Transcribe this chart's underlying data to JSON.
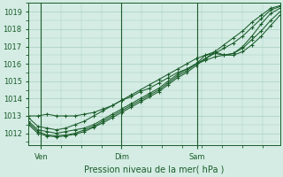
{
  "title": "Pression niveau de la mer( hPa )",
  "bg_color": "#d4ece4",
  "grid_color": "#a8cfc0",
  "line_color": "#1a5c2a",
  "ylim": [
    1011.3,
    1019.5
  ],
  "yticks": [
    1012,
    1013,
    1014,
    1015,
    1016,
    1017,
    1018,
    1019
  ],
  "xtick_labels": [
    "Ven",
    "Dim",
    "Sam"
  ],
  "xtick_positions": [
    0.05,
    0.37,
    0.67
  ],
  "vlines": [
    0.05,
    0.37,
    0.67
  ],
  "series": [
    [
      1012.7,
      1012.2,
      1012.1,
      1012.0,
      1012.1,
      1012.2,
      1012.3,
      1012.5,
      1012.8,
      1013.1,
      1013.4,
      1013.7,
      1014.0,
      1014.3,
      1014.6,
      1015.0,
      1015.4,
      1015.7,
      1016.0,
      1016.3,
      1016.6,
      1016.9,
      1017.2,
      1017.6,
      1018.1,
      1018.6,
      1019.1,
      1019.3
    ],
    [
      1012.6,
      1012.1,
      1011.9,
      1011.85,
      1011.9,
      1012.0,
      1012.2,
      1012.4,
      1012.7,
      1013.0,
      1013.3,
      1013.6,
      1013.9,
      1014.2,
      1014.5,
      1014.9,
      1015.3,
      1015.6,
      1016.0,
      1016.5,
      1016.7,
      1016.5,
      1016.6,
      1017.0,
      1017.6,
      1018.3,
      1018.9,
      1019.2
    ],
    [
      1012.9,
      1012.4,
      1012.3,
      1012.2,
      1012.3,
      1012.5,
      1012.7,
      1013.0,
      1013.3,
      1013.6,
      1013.9,
      1014.2,
      1014.5,
      1014.8,
      1015.1,
      1015.4,
      1015.7,
      1016.0,
      1016.3,
      1016.5,
      1016.6,
      1016.5,
      1016.6,
      1016.9,
      1017.4,
      1017.9,
      1018.5,
      1019.0
    ],
    [
      1013.0,
      1013.0,
      1013.1,
      1013.0,
      1013.0,
      1013.0,
      1013.1,
      1013.2,
      1013.4,
      1013.6,
      1013.9,
      1014.1,
      1014.4,
      1014.6,
      1014.9,
      1015.2,
      1015.5,
      1015.7,
      1016.0,
      1016.2,
      1016.4,
      1016.5,
      1016.5,
      1016.7,
      1017.1,
      1017.6,
      1018.2,
      1018.8
    ],
    [
      1012.5,
      1012.0,
      1011.85,
      1011.8,
      1011.85,
      1011.95,
      1012.1,
      1012.35,
      1012.6,
      1012.9,
      1013.2,
      1013.5,
      1013.8,
      1014.1,
      1014.4,
      1014.8,
      1015.2,
      1015.5,
      1015.9,
      1016.3,
      1016.7,
      1017.1,
      1017.5,
      1017.9,
      1018.4,
      1018.8,
      1019.2,
      1019.35
    ]
  ],
  "n_points": 28,
  "xlabel_fontsize": 7,
  "tick_fontsize": 6,
  "marker": "+"
}
